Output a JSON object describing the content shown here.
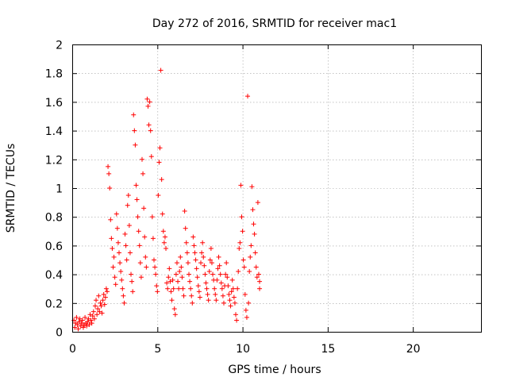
{
  "chart_data": {
    "type": "scatter",
    "title": "Day 272 of 2016, SRMTID for receiver mac1",
    "xlabel": "GPS time / hours",
    "ylabel": "SRMTID / TECUs",
    "xlim": [
      0,
      24
    ],
    "ylim": [
      0,
      2
    ],
    "xticks": [
      0,
      5,
      10,
      15,
      20
    ],
    "yticks": [
      0,
      0.2,
      0.4,
      0.6,
      0.8,
      1,
      1.2,
      1.4,
      1.6,
      1.8,
      2
    ],
    "xtick_labels": [
      "0",
      "5",
      "10",
      "15",
      "20"
    ],
    "ytick_labels": [
      "0",
      "0.2",
      "0.4",
      "0.6",
      "0.8",
      "1",
      "1.2",
      "1.4",
      "1.6",
      "1.8",
      "2"
    ],
    "grid": true,
    "marker": "+",
    "color": "#ff0000",
    "series": [
      {
        "points": [
          [
            0.1,
            0.08
          ],
          [
            0.15,
            0.03
          ],
          [
            0.2,
            0.06
          ],
          [
            0.25,
            0.1
          ],
          [
            0.3,
            0.05
          ],
          [
            0.35,
            0.02
          ],
          [
            0.4,
            0.07
          ],
          [
            0.45,
            0.09
          ],
          [
            0.5,
            0.04
          ],
          [
            0.55,
            0.06
          ],
          [
            0.6,
            0.08
          ],
          [
            0.65,
            0.03
          ],
          [
            0.7,
            0.05
          ],
          [
            0.75,
            0.1
          ],
          [
            0.8,
            0.06
          ],
          [
            0.85,
            0.04
          ],
          [
            0.9,
            0.07
          ],
          [
            0.95,
            0.09
          ],
          [
            1.0,
            0.05
          ],
          [
            1.05,
            0.12
          ],
          [
            1.1,
            0.08
          ],
          [
            1.15,
            0.06
          ],
          [
            1.2,
            0.11
          ],
          [
            1.25,
            0.14
          ],
          [
            1.3,
            0.09
          ],
          [
            1.35,
            0.18
          ],
          [
            1.4,
            0.22
          ],
          [
            1.45,
            0.12
          ],
          [
            1.5,
            0.16
          ],
          [
            1.55,
            0.25
          ],
          [
            1.6,
            0.14
          ],
          [
            1.65,
            0.2
          ],
          [
            1.7,
            0.18
          ],
          [
            1.75,
            0.13
          ],
          [
            1.8,
            0.22
          ],
          [
            1.85,
            0.26
          ],
          [
            1.9,
            0.19
          ],
          [
            1.95,
            0.24
          ],
          [
            2.0,
            0.3
          ],
          [
            2.05,
            0.28
          ],
          [
            2.1,
            1.15
          ],
          [
            2.15,
            1.1
          ],
          [
            2.2,
            1.0
          ],
          [
            2.25,
            0.78
          ],
          [
            2.3,
            0.65
          ],
          [
            2.35,
            0.58
          ],
          [
            2.4,
            0.45
          ],
          [
            2.45,
            0.52
          ],
          [
            2.5,
            0.38
          ],
          [
            2.55,
            0.33
          ],
          [
            2.6,
            0.82
          ],
          [
            2.65,
            0.72
          ],
          [
            2.7,
            0.62
          ],
          [
            2.75,
            0.55
          ],
          [
            2.8,
            0.48
          ],
          [
            2.85,
            0.42
          ],
          [
            2.9,
            0.36
          ],
          [
            2.95,
            0.3
          ],
          [
            3.0,
            0.25
          ],
          [
            3.05,
            0.2
          ],
          [
            3.1,
            0.68
          ],
          [
            3.15,
            0.6
          ],
          [
            3.2,
            0.5
          ],
          [
            3.25,
            0.88
          ],
          [
            3.3,
            0.95
          ],
          [
            3.35,
            0.74
          ],
          [
            3.4,
            0.55
          ],
          [
            3.45,
            0.4
          ],
          [
            3.5,
            0.35
          ],
          [
            3.55,
            0.28
          ],
          [
            3.6,
            1.51
          ],
          [
            3.65,
            1.4
          ],
          [
            3.7,
            1.3
          ],
          [
            3.75,
            1.02
          ],
          [
            3.8,
            0.92
          ],
          [
            3.85,
            0.8
          ],
          [
            3.9,
            0.7
          ],
          [
            3.95,
            0.6
          ],
          [
            4.0,
            0.48
          ],
          [
            4.05,
            0.38
          ],
          [
            4.1,
            1.2
          ],
          [
            4.15,
            1.1
          ],
          [
            4.2,
            0.86
          ],
          [
            4.25,
            0.66
          ],
          [
            4.3,
            0.52
          ],
          [
            4.35,
            0.45
          ],
          [
            4.4,
            1.62
          ],
          [
            4.45,
            1.57
          ],
          [
            4.5,
            1.44
          ],
          [
            4.55,
            1.6
          ],
          [
            4.6,
            1.4
          ],
          [
            4.65,
            1.22
          ],
          [
            4.7,
            0.8
          ],
          [
            4.75,
            0.65
          ],
          [
            4.8,
            0.5
          ],
          [
            4.85,
            0.45
          ],
          [
            4.9,
            0.4
          ],
          [
            4.95,
            0.32
          ],
          [
            5.0,
            0.28
          ],
          [
            5.05,
            0.95
          ],
          [
            5.1,
            1.18
          ],
          [
            5.15,
            1.28
          ],
          [
            5.2,
            1.82
          ],
          [
            5.25,
            1.06
          ],
          [
            5.3,
            0.82
          ],
          [
            5.35,
            0.7
          ],
          [
            5.4,
            0.62
          ],
          [
            5.45,
            0.66
          ],
          [
            5.5,
            0.58
          ],
          [
            5.55,
            0.34
          ],
          [
            5.6,
            0.3
          ],
          [
            5.65,
            0.38
          ],
          [
            5.7,
            0.44
          ],
          [
            5.75,
            0.35
          ],
          [
            5.8,
            0.28
          ],
          [
            5.85,
            0.22
          ],
          [
            5.9,
            0.36
          ],
          [
            5.95,
            0.3
          ],
          [
            6.0,
            0.16
          ],
          [
            6.05,
            0.12
          ],
          [
            6.1,
            0.4
          ],
          [
            6.15,
            0.48
          ],
          [
            6.2,
            0.35
          ],
          [
            6.25,
            0.3
          ],
          [
            6.3,
            0.42
          ],
          [
            6.35,
            0.52
          ],
          [
            6.4,
            0.45
          ],
          [
            6.45,
            0.38
          ],
          [
            6.5,
            0.3
          ],
          [
            6.55,
            0.25
          ],
          [
            6.6,
            0.84
          ],
          [
            6.65,
            0.72
          ],
          [
            6.7,
            0.62
          ],
          [
            6.75,
            0.55
          ],
          [
            6.8,
            0.48
          ],
          [
            6.85,
            0.4
          ],
          [
            6.9,
            0.35
          ],
          [
            6.95,
            0.3
          ],
          [
            7.0,
            0.25
          ],
          [
            7.05,
            0.2
          ],
          [
            7.1,
            0.66
          ],
          [
            7.15,
            0.6
          ],
          [
            7.2,
            0.55
          ],
          [
            7.25,
            0.5
          ],
          [
            7.3,
            0.44
          ],
          [
            7.35,
            0.38
          ],
          [
            7.4,
            0.32
          ],
          [
            7.45,
            0.28
          ],
          [
            7.5,
            0.24
          ],
          [
            7.55,
            0.48
          ],
          [
            7.6,
            0.55
          ],
          [
            7.65,
            0.62
          ],
          [
            7.7,
            0.52
          ],
          [
            7.75,
            0.46
          ],
          [
            7.8,
            0.4
          ],
          [
            7.85,
            0.34
          ],
          [
            7.9,
            0.3
          ],
          [
            7.95,
            0.26
          ],
          [
            8.0,
            0.22
          ],
          [
            8.05,
            0.42
          ],
          [
            8.1,
            0.5
          ],
          [
            8.15,
            0.58
          ],
          [
            8.2,
            0.48
          ],
          [
            8.25,
            0.4
          ],
          [
            8.3,
            0.36
          ],
          [
            8.35,
            0.3
          ],
          [
            8.4,
            0.26
          ],
          [
            8.45,
            0.22
          ],
          [
            8.5,
            0.36
          ],
          [
            8.55,
            0.44
          ],
          [
            8.6,
            0.52
          ],
          [
            8.65,
            0.46
          ],
          [
            8.7,
            0.4
          ],
          [
            8.75,
            0.34
          ],
          [
            8.8,
            0.3
          ],
          [
            8.85,
            0.25
          ],
          [
            8.9,
            0.2
          ],
          [
            8.95,
            0.32
          ],
          [
            9.0,
            0.4
          ],
          [
            9.05,
            0.48
          ],
          [
            9.1,
            0.38
          ],
          [
            9.15,
            0.32
          ],
          [
            9.2,
            0.26
          ],
          [
            9.25,
            0.22
          ],
          [
            9.3,
            0.18
          ],
          [
            9.35,
            0.28
          ],
          [
            9.4,
            0.36
          ],
          [
            9.45,
            0.3
          ],
          [
            9.5,
            0.24
          ],
          [
            9.55,
            0.2
          ],
          [
            9.6,
            0.12
          ],
          [
            9.65,
            0.08
          ],
          [
            9.7,
            0.3
          ],
          [
            9.75,
            0.42
          ],
          [
            9.8,
            0.58
          ],
          [
            9.85,
            0.62
          ],
          [
            9.9,
            1.02
          ],
          [
            9.95,
            0.8
          ],
          [
            10.0,
            0.7
          ],
          [
            10.05,
            0.5
          ],
          [
            10.1,
            0.45
          ],
          [
            10.15,
            0.26
          ],
          [
            10.2,
            0.15
          ],
          [
            10.25,
            0.1
          ],
          [
            10.3,
            1.64
          ],
          [
            10.35,
            0.2
          ],
          [
            10.4,
            0.42
          ],
          [
            10.45,
            0.52
          ],
          [
            10.5,
            0.6
          ],
          [
            10.55,
            1.01
          ],
          [
            10.6,
            0.85
          ],
          [
            10.65,
            0.75
          ],
          [
            10.7,
            0.68
          ],
          [
            10.75,
            0.55
          ],
          [
            10.8,
            0.45
          ],
          [
            10.85,
            0.38
          ],
          [
            10.9,
            0.9
          ],
          [
            10.95,
            0.4
          ],
          [
            11.0,
            0.35
          ],
          [
            11.0,
            0.3
          ]
        ]
      }
    ]
  }
}
